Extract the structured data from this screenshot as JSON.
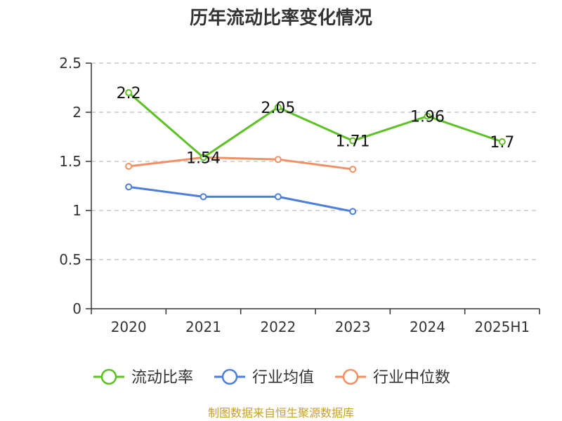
{
  "chart_data": {
    "type": "line",
    "title": "历年流动比率变化情况",
    "xlabel": "",
    "ylabel": "",
    "categories": [
      "2020",
      "2021",
      "2022",
      "2023",
      "2024",
      "2025H1"
    ],
    "ylim": [
      0,
      2.5
    ],
    "yticks": [
      "0",
      "0.5",
      "1",
      "1.5",
      "2",
      "2.5"
    ],
    "grid": true,
    "legend_position": "bottom",
    "series": [
      {
        "name": "流动比率",
        "color": "#5cc122",
        "values": [
          2.2,
          1.54,
          2.05,
          1.71,
          1.96,
          1.7
        ],
        "labels": [
          "2.2",
          "1.54",
          "2.05",
          "1.71",
          "1.96",
          "1.7"
        ]
      },
      {
        "name": "行业均值",
        "color": "#4d7ed9",
        "values": [
          1.24,
          1.14,
          1.14,
          0.99,
          null,
          null
        ]
      },
      {
        "name": "行业中位数",
        "color": "#f39063",
        "values": [
          1.45,
          1.54,
          1.52,
          1.42,
          null,
          null
        ]
      }
    ],
    "source": "制图数据来自恒生聚源数据库"
  }
}
